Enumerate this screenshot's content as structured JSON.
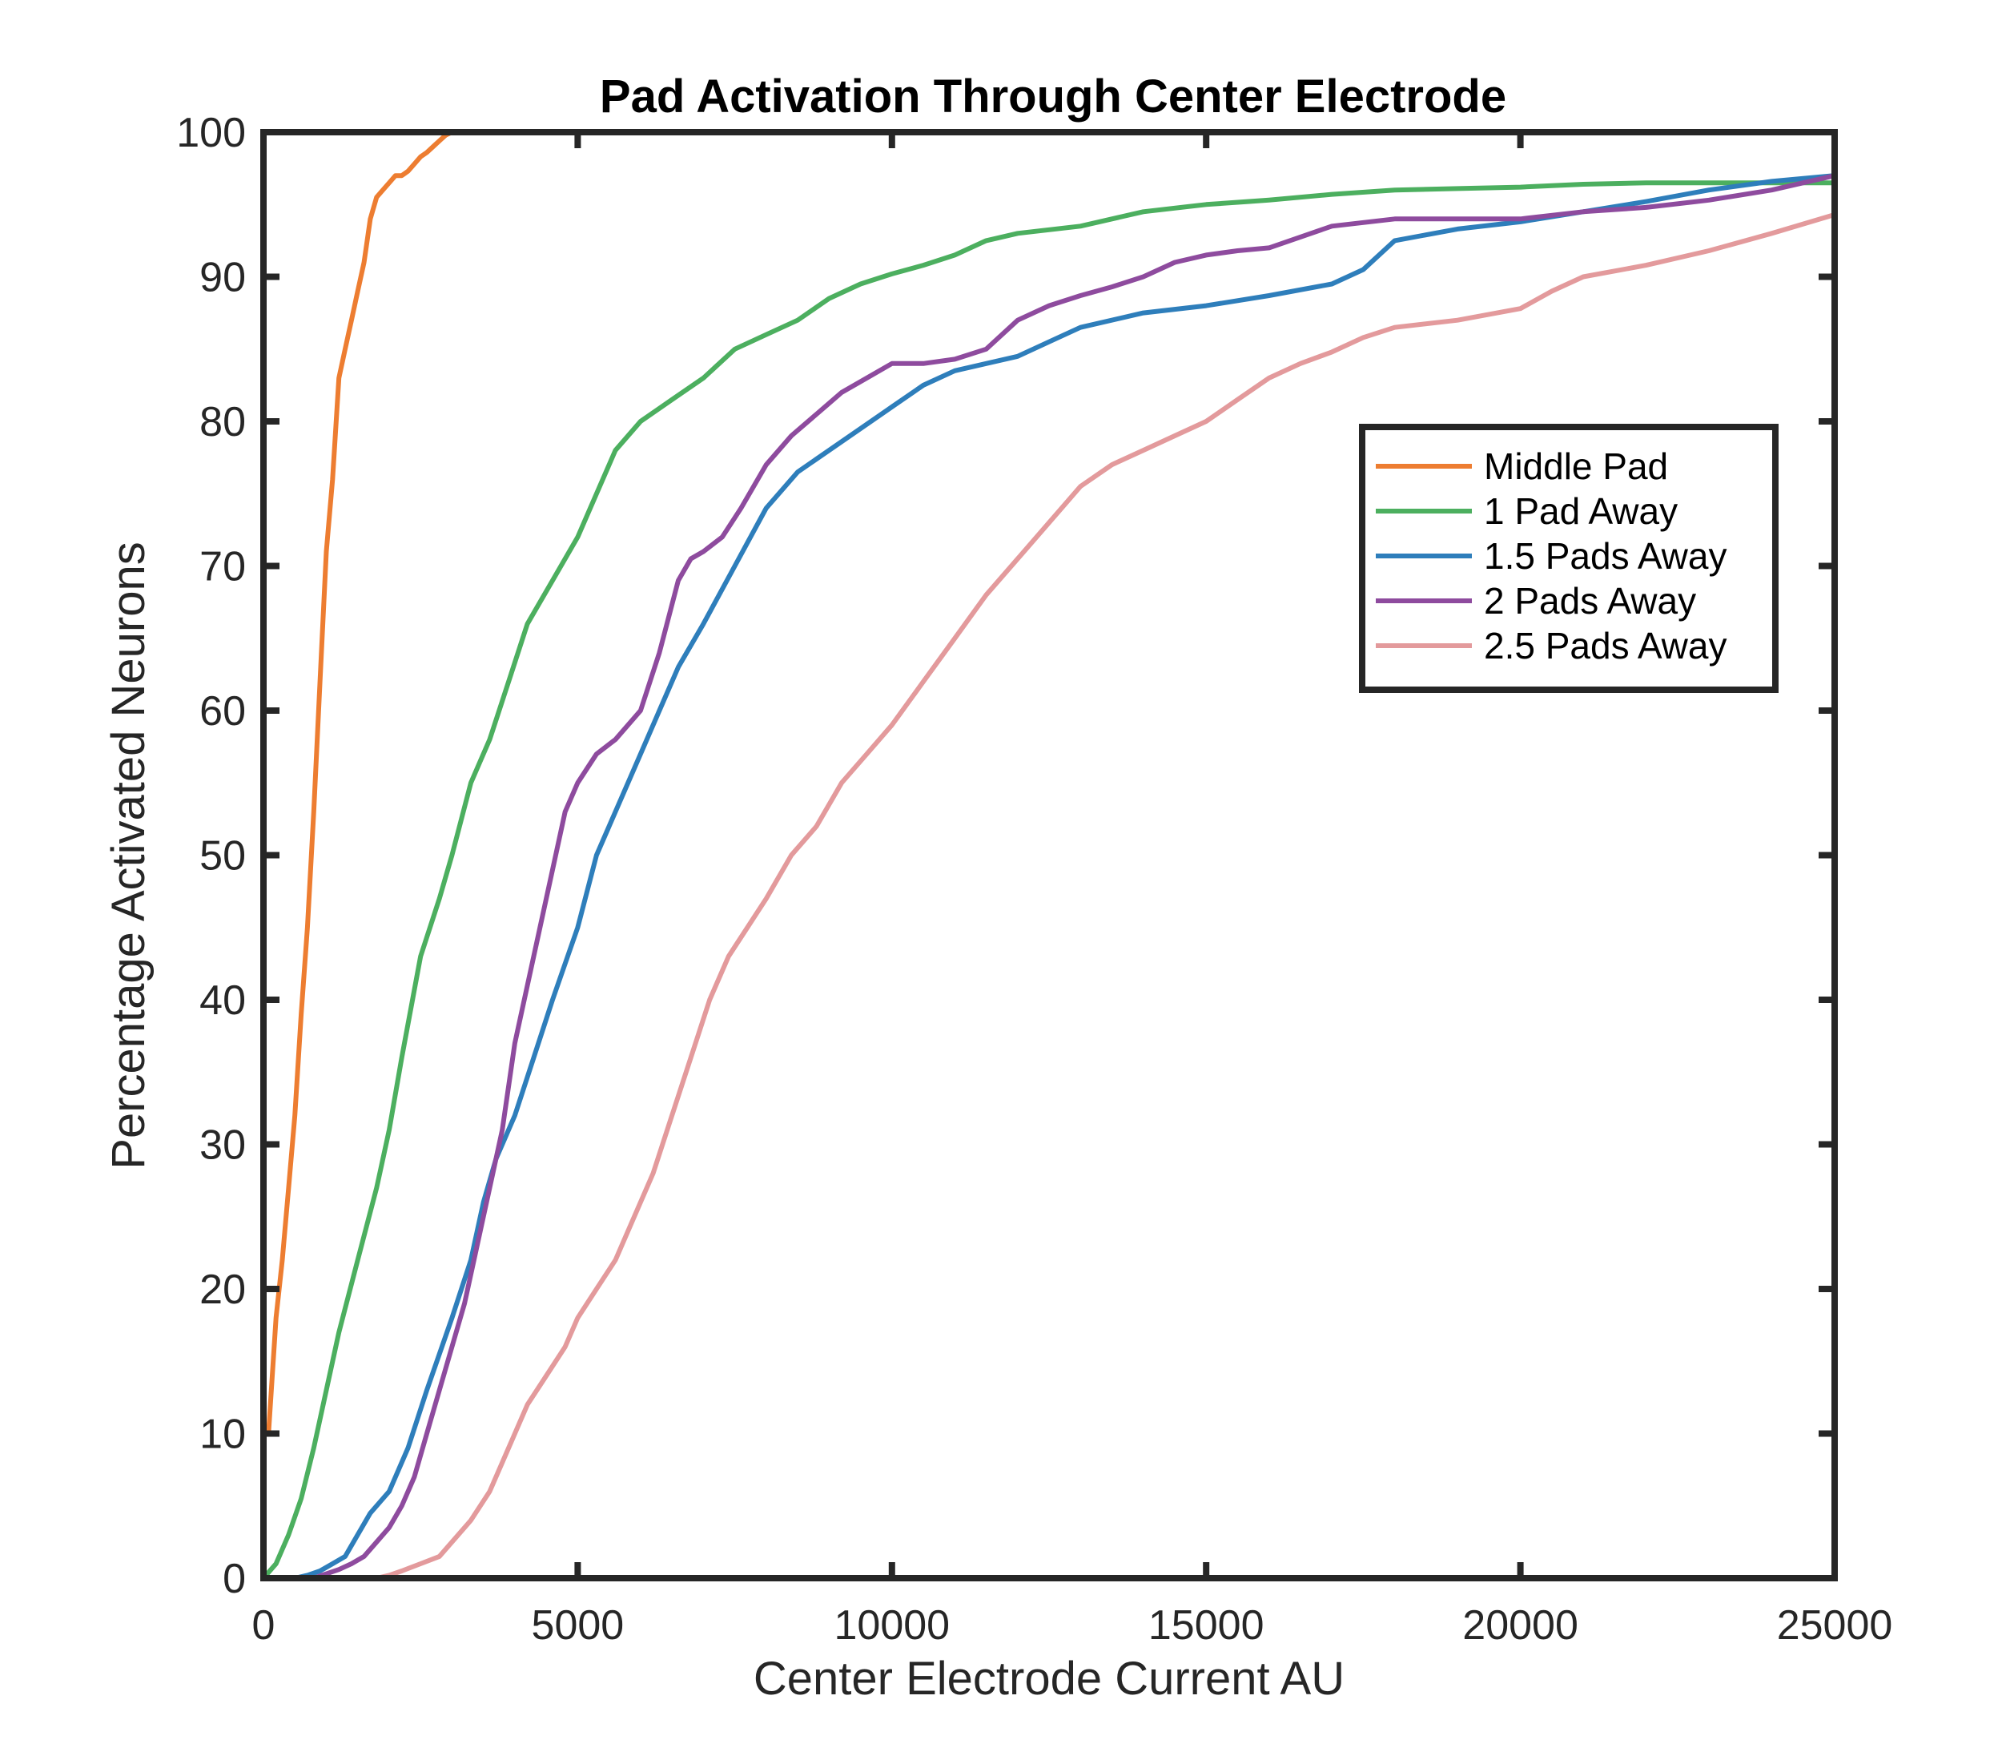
{
  "chart_data": {
    "type": "line",
    "title": "Pad Activation Through Center Electrode",
    "xlabel": "Center Electrode Current AU",
    "ylabel": "Percentage Activated Neurons",
    "xlim": [
      0,
      25000
    ],
    "ylim": [
      0,
      100
    ],
    "xticks": [
      "0",
      "5000",
      "10000",
      "15000",
      "20000",
      "25000"
    ],
    "yticks": [
      "0",
      "10",
      "20",
      "30",
      "40",
      "50",
      "60",
      "70",
      "80",
      "90",
      "100"
    ],
    "grid": false,
    "legend_position": "upper-right",
    "series": [
      {
        "name": "Middle Pad",
        "color": "#ED7D31",
        "x": [
          80,
          200,
          300,
          400,
          500,
          600,
          700,
          800,
          900,
          1000,
          1100,
          1200,
          1300,
          1400,
          1500,
          1600,
          1700,
          1800,
          1900,
          2000,
          2100,
          2200,
          2300,
          2400,
          2500,
          2600,
          2700,
          2800,
          2900,
          3000
        ],
        "y": [
          10,
          18,
          22,
          27,
          32,
          39,
          45,
          53,
          62,
          71,
          76,
          83,
          85,
          87,
          89,
          91,
          94,
          95.5,
          96,
          96.5,
          97,
          97,
          97.3,
          97.8,
          98.3,
          98.6,
          99.0,
          99.4,
          99.8,
          100
        ]
      },
      {
        "name": "1 Pad Away",
        "color": "#4CAF5F",
        "x": [
          0,
          200,
          400,
          600,
          800,
          1000,
          1200,
          1500,
          1800,
          2000,
          2200,
          2500,
          2800,
          3000,
          3300,
          3600,
          3900,
          4200,
          4600,
          5000,
          5300,
          5600,
          6000,
          6500,
          7000,
          7500,
          8000,
          8500,
          9000,
          9500,
          10000,
          10500,
          11000,
          11500,
          12000,
          13000,
          14000,
          15000,
          16000,
          17000,
          18000,
          19000,
          20000,
          21000,
          22000,
          23000,
          24000,
          25000
        ],
        "y": [
          0,
          1,
          3,
          5.5,
          9,
          13,
          17,
          22,
          27,
          31,
          36,
          43,
          47,
          50,
          55,
          58,
          62,
          66,
          69,
          72,
          75,
          78,
          80,
          81.5,
          83,
          85,
          86,
          87,
          88.5,
          89.5,
          90.2,
          90.8,
          91.5,
          92.5,
          93,
          93.5,
          94.5,
          95,
          95.3,
          95.7,
          96,
          96.1,
          96.2,
          96.4,
          96.5,
          96.5,
          96.5,
          96.5
        ]
      },
      {
        "name": "1.5 Pads Away",
        "color": "#2E7EBB",
        "x": [
          500,
          700,
          900,
          1100,
          1300,
          1500,
          1700,
          2000,
          2300,
          2600,
          3000,
          3300,
          3500,
          3700,
          4000,
          4300,
          4600,
          5000,
          5300,
          5600,
          6000,
          6300,
          6600,
          7000,
          7500,
          8000,
          8500,
          9000,
          9500,
          10000,
          10500,
          11000,
          11500,
          12000,
          12500,
          13000,
          14000,
          15000,
          16000,
          17000,
          17500,
          18000,
          19000,
          20000,
          21000,
          22000,
          23000,
          24000,
          25000
        ],
        "y": [
          0,
          0.2,
          0.5,
          1,
          1.5,
          3,
          4.5,
          6,
          9,
          13,
          18,
          22,
          26,
          29,
          32,
          36,
          40,
          45,
          50,
          53,
          57,
          60,
          63,
          66,
          70,
          74,
          76.5,
          78,
          79.5,
          81,
          82.5,
          83.5,
          84,
          84.5,
          85.5,
          86.5,
          87.5,
          88,
          88.7,
          89.5,
          90.5,
          92.5,
          93.3,
          93.8,
          94.5,
          95.2,
          96,
          96.6,
          97
        ]
      },
      {
        "name": "2 Pads Away",
        "color": "#8E4B9E",
        "x": [
          800,
          1000,
          1200,
          1400,
          1600,
          1800,
          2000,
          2200,
          2400,
          2600,
          2800,
          3000,
          3200,
          3400,
          3600,
          3800,
          4000,
          4200,
          4400,
          4600,
          4800,
          5000,
          5300,
          5600,
          6000,
          6300,
          6600,
          6800,
          7000,
          7300,
          7600,
          8000,
          8400,
          8800,
          9200,
          9600,
          10000,
          10500,
          11000,
          11500,
          12000,
          12500,
          13000,
          13500,
          14000,
          14500,
          15000,
          15500,
          16000,
          17000,
          18000,
          19000,
          20000,
          21000,
          22000,
          23000,
          24000,
          25000
        ],
        "y": [
          0,
          0.3,
          0.6,
          1,
          1.5,
          2.5,
          3.5,
          5,
          7,
          10,
          13,
          16,
          19,
          23,
          27,
          31,
          37,
          41,
          45,
          49,
          53,
          55,
          57,
          58,
          60,
          64,
          69,
          70.5,
          71,
          72,
          74,
          77,
          79,
          80.5,
          82,
          83,
          84,
          84,
          84.3,
          85,
          87,
          88,
          88.7,
          89.3,
          90,
          91,
          91.5,
          91.8,
          92,
          93.5,
          94,
          94,
          94,
          94.5,
          94.8,
          95.3,
          96,
          97
        ]
      },
      {
        "name": "2.5 Pads Away",
        "color": "#E39A9C",
        "x": [
          1800,
          2000,
          2200,
          2500,
          2800,
          3000,
          3300,
          3600,
          3900,
          4200,
          4500,
          4800,
          5000,
          5300,
          5600,
          5900,
          6200,
          6500,
          6800,
          7100,
          7400,
          7700,
          8000,
          8400,
          8800,
          9200,
          9600,
          10000,
          10500,
          11000,
          11500,
          12000,
          12500,
          13000,
          13500,
          14000,
          14500,
          15000,
          15500,
          16000,
          16500,
          17000,
          17500,
          18000,
          19000,
          20000,
          20500,
          21000,
          22000,
          23000,
          24000,
          25000
        ],
        "y": [
          0,
          0.2,
          0.5,
          1,
          1.5,
          2.5,
          4,
          6,
          9,
          12,
          14,
          16,
          18,
          20,
          22,
          25,
          28,
          32,
          36,
          40,
          43,
          45,
          47,
          50,
          52,
          55,
          57,
          59,
          62,
          65,
          68,
          70.5,
          73,
          75.5,
          77,
          78,
          79,
          80,
          81.5,
          83,
          84,
          84.8,
          85.8,
          86.5,
          87,
          87.8,
          89,
          90,
          90.8,
          91.8,
          93,
          94.3
        ]
      }
    ]
  }
}
